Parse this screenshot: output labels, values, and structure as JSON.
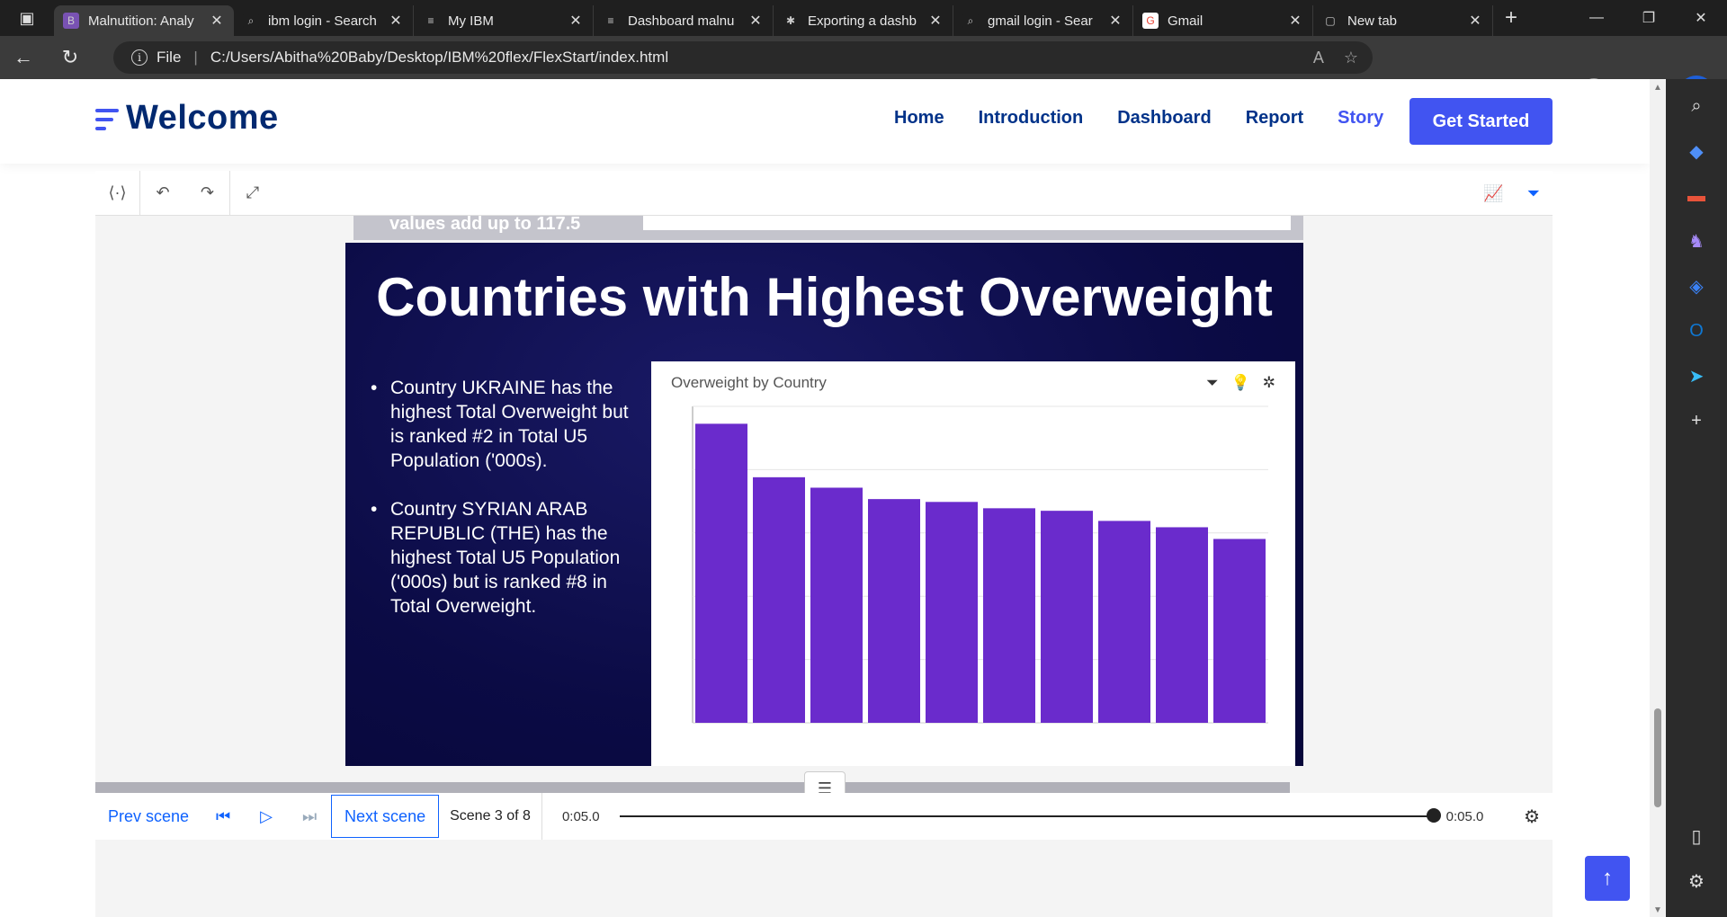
{
  "browser": {
    "tabs": [
      {
        "title": "Malnutition: Analy",
        "favicon": "B",
        "favicon_color": "#7952b3",
        "active": true
      },
      {
        "title": "ibm login - Search",
        "favicon": "⌕",
        "favicon_color": "#1f1f1f",
        "active": false
      },
      {
        "title": "My IBM",
        "favicon": "≡",
        "favicon_color": "#1f1f1f",
        "active": false
      },
      {
        "title": "Dashboard malnu",
        "favicon": "≡",
        "favicon_color": "#1f1f1f",
        "active": false
      },
      {
        "title": "Exporting a dashb",
        "favicon": "✱",
        "favicon_color": "#1f1f1f",
        "active": false
      },
      {
        "title": "gmail login - Sear",
        "favicon": "⌕",
        "favicon_color": "#1f1f1f",
        "active": false
      },
      {
        "title": "Gmail",
        "favicon": "G",
        "favicon_color": "#ffffff",
        "active": false
      },
      {
        "title": "New tab",
        "favicon": "▢",
        "favicon_color": "#1f1f1f",
        "active": false
      }
    ],
    "address_scheme": "File",
    "address_url": "C:/Users/Abitha%20Baby/Desktop/IBM%20flex/FlexStart/index.html",
    "bing_label": "b"
  },
  "site": {
    "logo": "Welcome",
    "nav": [
      "Home",
      "Introduction",
      "Dashboard",
      "Report",
      "Story"
    ],
    "active_nav": "Story",
    "cta": "Get Started"
  },
  "story": {
    "prev_slide_text": "values add up to 117.5",
    "slide_title": "Countries with Highest Overweight",
    "bullets": [
      "Country UKRAINE has the highest Total Overweight but is ranked #2 in Total U5 Population ('000s).",
      "Country SYRIAN ARAB REPUBLIC (THE) has the highest Total U5 Population ('000s) but is ranked #8 in Total Overweight."
    ],
    "chart_title": "Overweight by Country",
    "player": {
      "prev": "Prev scene",
      "next": "Next scene",
      "scene": "Scene 3 of 8",
      "time_start": "0:05.0",
      "time_end": "0:05.0"
    }
  },
  "chart_data": {
    "type": "bar",
    "title": "Overweight by Country",
    "categories": [
      "",
      "",
      "",
      "",
      "",
      "",
      "",
      "",
      "",
      ""
    ],
    "values": [
      94.5,
      77.6,
      74.3,
      70.7,
      69.8,
      67.8,
      67.0,
      63.8,
      61.8,
      58.1
    ],
    "ylim": [
      0,
      100
    ],
    "grid": true,
    "bar_color": "#6a2bcc"
  },
  "colors": {
    "brand": "#4154f1",
    "nav_text": "#013289",
    "logo_text": "#012970",
    "link_blue": "#0f62fe"
  }
}
